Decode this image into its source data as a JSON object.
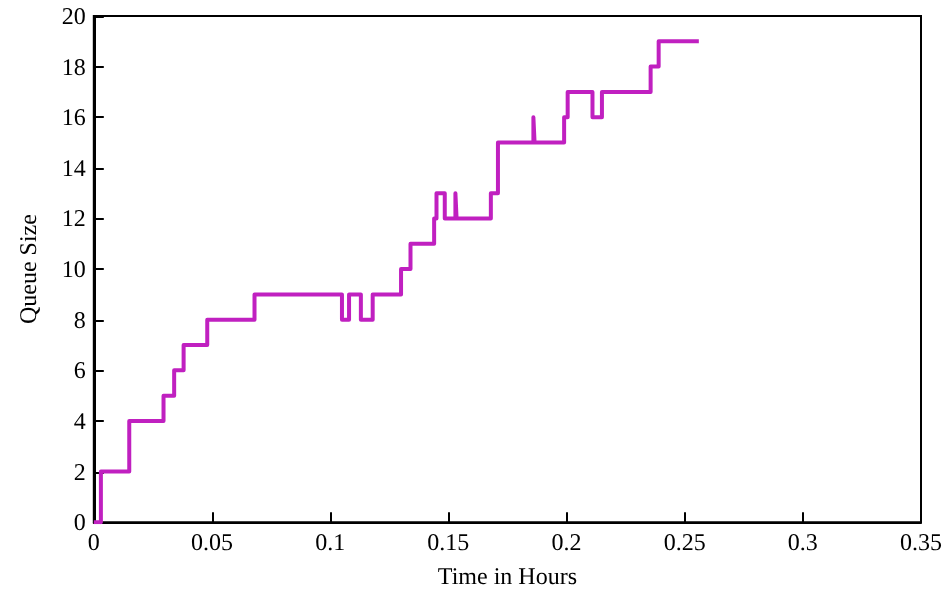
{
  "chart_data": {
    "type": "step",
    "xlabel": "Time in Hours",
    "ylabel": "Queue Size",
    "x": [
      0,
      0.003,
      0.015,
      0.0295,
      0.034,
      0.038,
      0.048,
      0.068,
      0.105,
      0.108,
      0.113,
      0.118,
      0.13,
      0.134,
      0.144,
      0.145,
      0.1485,
      0.153,
      0.1535,
      0.168,
      0.171,
      0.186,
      0.1865,
      0.199,
      0.2005,
      0.211,
      0.215,
      0.2356,
      0.239,
      0.256
    ],
    "series": [
      {
        "color": "#c020c0",
        "values": [
          0,
          2,
          4,
          5,
          6,
          7,
          8,
          9,
          8,
          9,
          8,
          9,
          10,
          11,
          12,
          13,
          12,
          13,
          12,
          13,
          15,
          16,
          15,
          16,
          17,
          16,
          17,
          18,
          19,
          19
        ]
      }
    ],
    "xlim": [
      0,
      0.35
    ],
    "xticks": [
      0,
      0.05,
      0.1,
      0.15,
      0.2,
      0.25,
      0.3,
      0.35
    ],
    "ylim": [
      0,
      20
    ],
    "yticks": [
      0,
      2,
      4,
      6,
      8,
      10,
      12,
      14,
      16,
      18,
      20
    ],
    "grid": false,
    "marker": "none",
    "line_style": "solid"
  }
}
